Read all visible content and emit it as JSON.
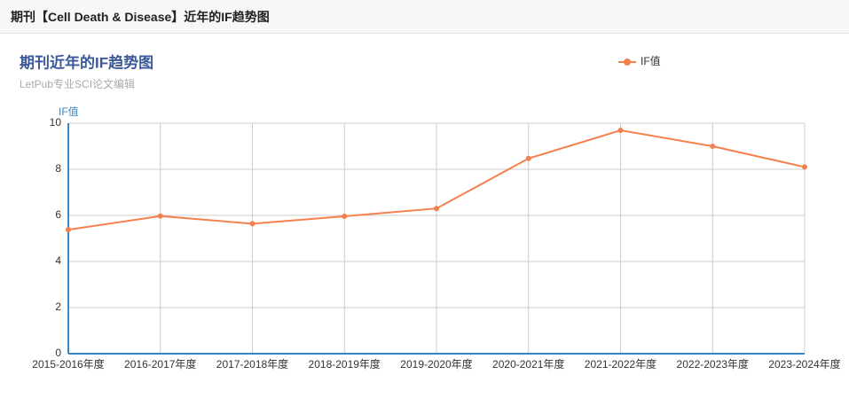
{
  "header": {
    "title": "期刊【Cell Death & Disease】近年的IF趋势图"
  },
  "chart_data": {
    "type": "line",
    "title": "期刊近年的IF趋势图",
    "subtitle": "LetPub专业SCI论文编辑",
    "y_label": "IF值",
    "categories": [
      "2015-2016年度",
      "2016-2017年度",
      "2017-2018年度",
      "2018-2019年度",
      "2019-2020年度",
      "2020-2021年度",
      "2021-2022年度",
      "2022-2023年度",
      "2023-2024年度"
    ],
    "series": [
      {
        "name": "IF值",
        "color": "#f5804d",
        "values": [
          5.38,
          5.97,
          5.64,
          5.96,
          6.3,
          8.47,
          9.69,
          9.0,
          8.1
        ]
      }
    ],
    "ylim": [
      0,
      10
    ],
    "yticks": [
      0,
      2,
      4,
      6,
      8,
      10
    ],
    "grid": true,
    "legend": "top-right"
  }
}
